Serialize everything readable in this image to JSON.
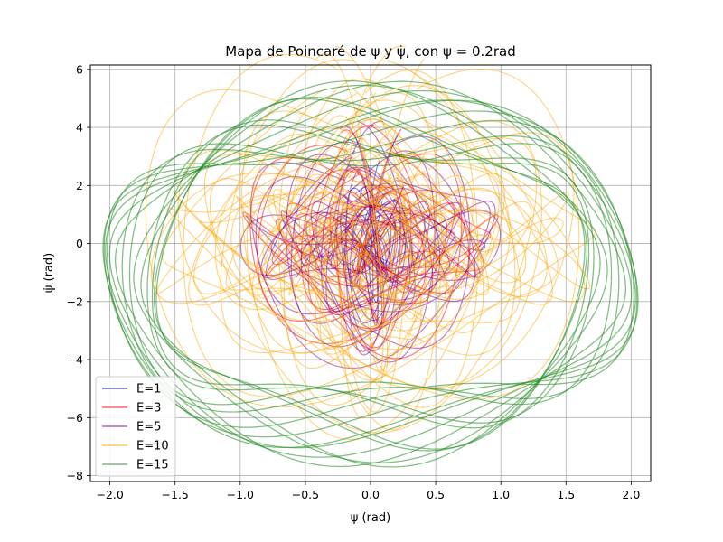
{
  "chart_data": {
    "type": "line",
    "title": "Mapa de Poincaré de ψ y ψ̇, con  ψ = 0.2rad",
    "xlabel": "ψ (rad)",
    "ylabel": "ψ̇ (rad)",
    "xlim": [
      -2.15,
      2.15
    ],
    "ylim": [
      -8.2,
      6.15
    ],
    "xticks": [
      -2.0,
      -1.5,
      -1.0,
      -0.5,
      0.0,
      0.5,
      1.0,
      1.5,
      2.0
    ],
    "xtick_labels": [
      "−2.0",
      "−1.5",
      "−1.0",
      "−0.5",
      "0.0",
      "0.5",
      "1.0",
      "1.5",
      "2.0"
    ],
    "yticks": [
      -8,
      -6,
      -4,
      -2,
      0,
      2,
      4,
      6
    ],
    "ytick_labels": [
      "−8",
      "−6",
      "−4",
      "−2",
      "0",
      "2",
      "4",
      "6"
    ],
    "grid": true,
    "legend_position": "lower-left",
    "series": [
      {
        "name": "E=1",
        "color": "#0000cc",
        "psi_amplitude": 0.3,
        "psidot_max": 2.2,
        "psidot_min": -2.4
      },
      {
        "name": "E=3",
        "color": "#ff0000",
        "psi_amplitude": 0.85,
        "psidot_max": 2.9,
        "psidot_min": -3.3
      },
      {
        "name": "E=5",
        "color": "#800080",
        "psi_amplitude": 0.85,
        "psidot_max": 3.0,
        "psidot_min": -3.4
      },
      {
        "name": "E=10",
        "color": "#ffa500",
        "psi_amplitude": 1.45,
        "psidot_max": 5.1,
        "psidot_min": -5.1
      },
      {
        "name": "E=15",
        "color": "#228b22",
        "psi_amplitude": 1.95,
        "psidot_max": 5.4,
        "psidot_min": -7.5
      }
    ]
  }
}
